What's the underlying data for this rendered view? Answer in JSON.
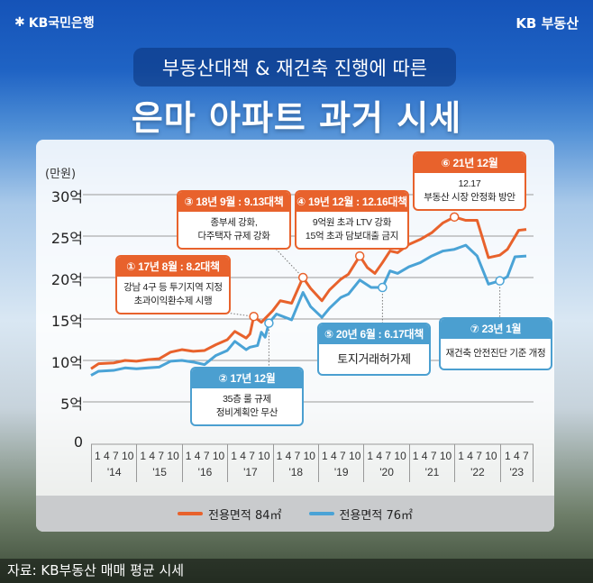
{
  "header": {
    "bank_logo": "KB국민은행",
    "brand_logo": "KB 부동산",
    "subtitle": "부동산대책 & 재건축 진행에 따른",
    "title": "은마 아파트 과거 시세"
  },
  "colors": {
    "orange": "#e8622c",
    "blue": "#4aa3d6",
    "background": "#1a5bbf"
  },
  "chart_data": {
    "type": "line",
    "ylabel": "(만원)",
    "y_ticks": [
      "0",
      "5억",
      "10억",
      "15억",
      "20억",
      "25억",
      "30억"
    ],
    "ylim": [
      0,
      30
    ],
    "grid": true,
    "x_month_ticks": [
      "1",
      "4",
      "7",
      "10"
    ],
    "x_years": [
      "'14",
      "'15",
      "'16",
      "'17",
      "'18",
      "'19",
      "'20",
      "'21",
      "'22",
      "'23"
    ],
    "last_year_months": [
      "1",
      "4",
      "7"
    ],
    "legend_placement": "bottom",
    "series": [
      {
        "name": "전용면적 84㎡",
        "color": "#e8622c",
        "points": [
          [
            "2014-01",
            9.0
          ],
          [
            "2014-03",
            9.6
          ],
          [
            "2014-07",
            9.7
          ],
          [
            "2014-10",
            10.0
          ],
          [
            "2015-01",
            9.9
          ],
          [
            "2015-04",
            10.1
          ],
          [
            "2015-07",
            10.2
          ],
          [
            "2015-10",
            11.0
          ],
          [
            "2016-01",
            11.3
          ],
          [
            "2016-04",
            11.1
          ],
          [
            "2016-07",
            11.2
          ],
          [
            "2016-10",
            11.9
          ],
          [
            "2017-01",
            12.5
          ],
          [
            "2017-03",
            13.5
          ],
          [
            "2017-06",
            12.7
          ],
          [
            "2017-07",
            13.2
          ],
          [
            "2017-08",
            15.3
          ],
          [
            "2017-10",
            14.6
          ],
          [
            "2018-01",
            16.0
          ],
          [
            "2018-03",
            17.2
          ],
          [
            "2018-06",
            16.9
          ],
          [
            "2018-09",
            20.0
          ],
          [
            "2018-11",
            18.7
          ],
          [
            "2019-02",
            17.2
          ],
          [
            "2019-04",
            18.5
          ],
          [
            "2019-07",
            19.8
          ],
          [
            "2019-09",
            20.4
          ],
          [
            "2019-12",
            22.6
          ],
          [
            "2020-02",
            21.2
          ],
          [
            "2020-04",
            20.5
          ],
          [
            "2020-06",
            21.8
          ],
          [
            "2020-08",
            23.2
          ],
          [
            "2020-10",
            23.0
          ],
          [
            "2021-01",
            24.0
          ],
          [
            "2021-04",
            24.6
          ],
          [
            "2021-07",
            25.4
          ],
          [
            "2021-10",
            26.6
          ],
          [
            "2022-01",
            27.3
          ],
          [
            "2022-04",
            26.9
          ],
          [
            "2022-07",
            26.9
          ],
          [
            "2022-10",
            22.4
          ],
          [
            "2023-01",
            22.7
          ],
          [
            "2023-03",
            23.4
          ],
          [
            "2023-06",
            25.7
          ],
          [
            "2023-08",
            25.8
          ]
        ]
      },
      {
        "name": "전용면적 76㎡",
        "color": "#4aa3d6",
        "points": [
          [
            "2014-01",
            8.2
          ],
          [
            "2014-03",
            8.7
          ],
          [
            "2014-07",
            8.8
          ],
          [
            "2014-10",
            9.1
          ],
          [
            "2015-01",
            9.0
          ],
          [
            "2015-04",
            9.1
          ],
          [
            "2015-07",
            9.2
          ],
          [
            "2015-10",
            9.9
          ],
          [
            "2016-01",
            10.0
          ],
          [
            "2016-04",
            9.8
          ],
          [
            "2016-07",
            9.5
          ],
          [
            "2016-10",
            10.6
          ],
          [
            "2017-01",
            11.2
          ],
          [
            "2017-03",
            12.3
          ],
          [
            "2017-06",
            11.3
          ],
          [
            "2017-07",
            11.6
          ],
          [
            "2017-09",
            11.8
          ],
          [
            "2017-10",
            13.4
          ],
          [
            "2017-11",
            12.8
          ],
          [
            "2017-12",
            14.5
          ],
          [
            "2018-02",
            15.6
          ],
          [
            "2018-06",
            14.9
          ],
          [
            "2018-09",
            18.2
          ],
          [
            "2018-11",
            16.5
          ],
          [
            "2019-02",
            15.2
          ],
          [
            "2019-04",
            16.3
          ],
          [
            "2019-07",
            17.6
          ],
          [
            "2019-09",
            18.0
          ],
          [
            "2019-12",
            19.7
          ],
          [
            "2020-03",
            18.8
          ],
          [
            "2020-06",
            18.8
          ],
          [
            "2020-08",
            20.8
          ],
          [
            "2020-10",
            20.5
          ],
          [
            "2021-01",
            21.3
          ],
          [
            "2021-04",
            21.8
          ],
          [
            "2021-07",
            22.6
          ],
          [
            "2021-10",
            23.2
          ],
          [
            "2022-01",
            23.4
          ],
          [
            "2022-04",
            23.9
          ],
          [
            "2022-07",
            22.6
          ],
          [
            "2022-10",
            19.2
          ],
          [
            "2023-01",
            19.6
          ],
          [
            "2023-03",
            20.1
          ],
          [
            "2023-05",
            22.5
          ],
          [
            "2023-08",
            22.6
          ]
        ]
      }
    ],
    "annotations": [
      {
        "id": "c1",
        "series": 0,
        "date": "2017-08",
        "header": "① 17년 8월 : 8.2대책",
        "lines": [
          "강남 4구 등 투기지역 지정",
          "초과이익환수제 시행"
        ],
        "color": "#e8622c"
      },
      {
        "id": "c2",
        "series": 1,
        "date": "2017-12",
        "header": "② 17년 12월",
        "lines": [
          "35층 룰 규제",
          "정비계획안 무산"
        ],
        "color": "#4b9fd0"
      },
      {
        "id": "c3",
        "series": 0,
        "date": "2018-09",
        "header": "③ 18년 9월 : 9.13대책",
        "lines": [
          "종부세 강화,",
          "다주택자 규제 강화"
        ],
        "color": "#e8622c"
      },
      {
        "id": "c4",
        "series": 0,
        "date": "2019-12",
        "header": "④ 19년 12월 : 12.16대책",
        "lines": [
          "9억원 초과 LTV 강화",
          "15억 초과 담보대출 금지"
        ],
        "color": "#e8622c"
      },
      {
        "id": "c5",
        "series": 1,
        "date": "2020-06",
        "header": "⑤ 20년 6월 : 6.17대책",
        "lines": [
          "토지거래허가제"
        ],
        "color": "#4b9fd0"
      },
      {
        "id": "c6",
        "series": 0,
        "date": "2022-01",
        "header": "⑥ 21년 12월",
        "lines": [
          "12.17",
          "부동산 시장 안정화 방안"
        ],
        "color": "#e8622c"
      },
      {
        "id": "c7",
        "series": 1,
        "date": "2023-01",
        "header": "⑦ 23년 1월",
        "lines": [
          "재건축 안전진단 기준 개정"
        ],
        "color": "#4b9fd0"
      }
    ]
  },
  "footer": {
    "source": "자료: KB부동산 매매 평균 시세"
  }
}
